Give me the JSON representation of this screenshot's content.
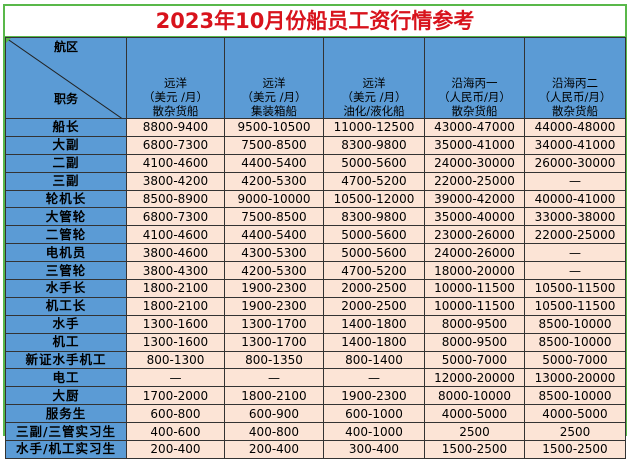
{
  "title": "2023年10月份船员工资行情参考",
  "header": {
    "corner_top": "航区",
    "corner_bottom": "职务",
    "columns": [
      {
        "line1": "远洋",
        "line2": "（美元 /月）",
        "line3": "散杂货船"
      },
      {
        "line1": "远洋",
        "line2": "（美元 /月）",
        "line3": "集装箱船"
      },
      {
        "line1": "远洋",
        "line2": "（美元 /月）",
        "line3": "油化/液化船"
      },
      {
        "line1": "沿海丙一",
        "line2": "（人民币/月）",
        "line3": "散杂货船"
      },
      {
        "line1": "沿海丙二",
        "line2": "（人民币/月）",
        "line3": "散杂货船"
      }
    ]
  },
  "rows": [
    {
      "position": "船长",
      "v": [
        "8800-9400",
        "9500-10500",
        "11000-12500",
        "43000-47000",
        "44000-48000"
      ]
    },
    {
      "position": "大副",
      "v": [
        "6800-7300",
        "7500-8500",
        "8300-9800",
        "35000-41000",
        "34000-41000"
      ]
    },
    {
      "position": "二副",
      "v": [
        "4100-4600",
        "4400-5400",
        "5000-5600",
        "24000-30000",
        "26000-30000"
      ]
    },
    {
      "position": "三副",
      "v": [
        "3800-4200",
        "4200-5300",
        "4700-5200",
        "22000-25000",
        "—"
      ]
    },
    {
      "position": "轮机长",
      "v": [
        "8500-8900",
        "9000-10000",
        "10500-12000",
        "39000-42000",
        "40000-41000"
      ]
    },
    {
      "position": "大管轮",
      "v": [
        "6800-7300",
        "7500-8500",
        "8300-9800",
        "35000-40000",
        "33000-38000"
      ]
    },
    {
      "position": "二管轮",
      "v": [
        "4100-4600",
        "4400-5400",
        "5000-5600",
        "23000-26000",
        "22000-25000"
      ]
    },
    {
      "position": "电机员",
      "v": [
        "3800-4600",
        "4300-5300",
        "5000-5600",
        "24000-26000",
        "—"
      ]
    },
    {
      "position": "三管轮",
      "v": [
        "3800-4300",
        "4200-5300",
        "4700-5200",
        "18000-20000",
        "—"
      ]
    },
    {
      "position": "水手长",
      "v": [
        "1800-2100",
        "1900-2300",
        "2000-2500",
        "10000-11500",
        "10500-11500"
      ]
    },
    {
      "position": "机工长",
      "v": [
        "1800-2100",
        "1900-2300",
        "2000-2500",
        "10000-11500",
        "10500-11500"
      ]
    },
    {
      "position": "水手",
      "v": [
        "1300-1600",
        "1300-1700",
        "1400-1800",
        "8000-9500",
        "8500-10000"
      ]
    },
    {
      "position": "机工",
      "v": [
        "1300-1600",
        "1300-1700",
        "1400-1800",
        "8000-9500",
        "8500-10000"
      ]
    },
    {
      "position": "新证水手机工",
      "v": [
        "800-1300",
        "800-1350",
        "800-1400",
        "5000-7000",
        "5000-7000"
      ]
    },
    {
      "position": "电工",
      "v": [
        "—",
        "—",
        "—",
        "12000-20000",
        "13000-20000"
      ]
    },
    {
      "position": "大厨",
      "v": [
        "1700-2000",
        "1800-2100",
        "1900-2300",
        "8000-10000",
        "8500-10000"
      ]
    },
    {
      "position": "服务生",
      "v": [
        "600-800",
        "600-900",
        "600-1000",
        "4000-5000",
        "4000-5000"
      ]
    },
    {
      "position": "三副/三管实习生",
      "v": [
        "400-600",
        "400-800",
        "400-1000",
        "2500",
        "2500"
      ]
    },
    {
      "position": "水手/机工实习生",
      "v": [
        "200-400",
        "200-400",
        "300-400",
        "1500-2500",
        "1500-2500"
      ]
    }
  ]
}
